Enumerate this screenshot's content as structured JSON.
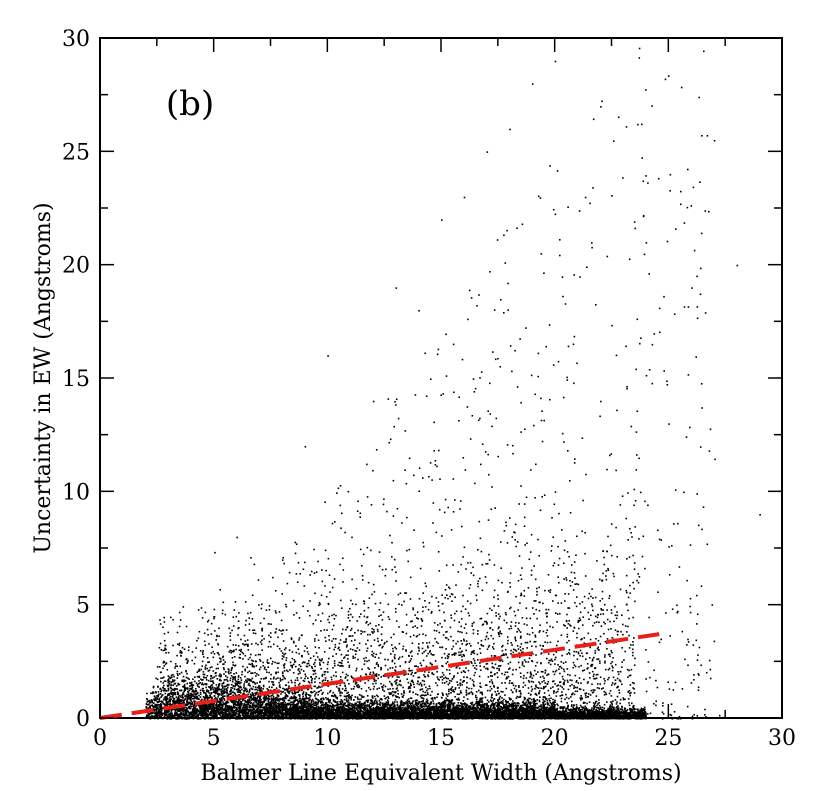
{
  "chart_data": {
    "type": "scatter",
    "panel_label": "(b)",
    "xlabel": "Balmer Line Equivalent Width (Angstroms)",
    "ylabel": "Uncertainty in EW (Angstroms)",
    "xlim": [
      0,
      30
    ],
    "ylim": [
      0,
      30
    ],
    "xticks": [
      "0",
      "5",
      "10",
      "15",
      "20",
      "25",
      "30"
    ],
    "yticks": [
      "0",
      "5",
      "10",
      "15",
      "20",
      "25",
      "30"
    ],
    "grid": false,
    "series": [
      {
        "marker_color": "#000000",
        "description": "dense point cloud; densest for EW 3-22 at uncertainty below ~2; sparse scatter extends up to ~30",
        "sample_points": [
          [
            3.5,
            3.0
          ],
          [
            5,
            4.5
          ],
          [
            6,
            8
          ],
          [
            8,
            7
          ],
          [
            9,
            12
          ],
          [
            10,
            16
          ],
          [
            12,
            14
          ],
          [
            13,
            19
          ],
          [
            14,
            18
          ],
          [
            15,
            22
          ],
          [
            16,
            23
          ],
          [
            17,
            25
          ],
          [
            18,
            26
          ],
          [
            19,
            28
          ],
          [
            20,
            29
          ],
          [
            22,
            27
          ],
          [
            24,
            21
          ],
          [
            26,
            19
          ],
          [
            28,
            20
          ],
          [
            29,
            9
          ],
          [
            27,
            25.5
          ],
          [
            25,
            13
          ],
          [
            22,
            14
          ],
          [
            20,
            10
          ],
          [
            18,
            6
          ],
          [
            16,
            4
          ],
          [
            14,
            3
          ],
          [
            12,
            2
          ],
          [
            10,
            2.5
          ],
          [
            8,
            2
          ],
          [
            6,
            1.5
          ],
          [
            4,
            1
          ]
        ]
      },
      {
        "line_style": "dashed",
        "color": "#e8201a",
        "x": [
          0,
          24.6
        ],
        "y": [
          0.0,
          3.7
        ]
      }
    ]
  }
}
